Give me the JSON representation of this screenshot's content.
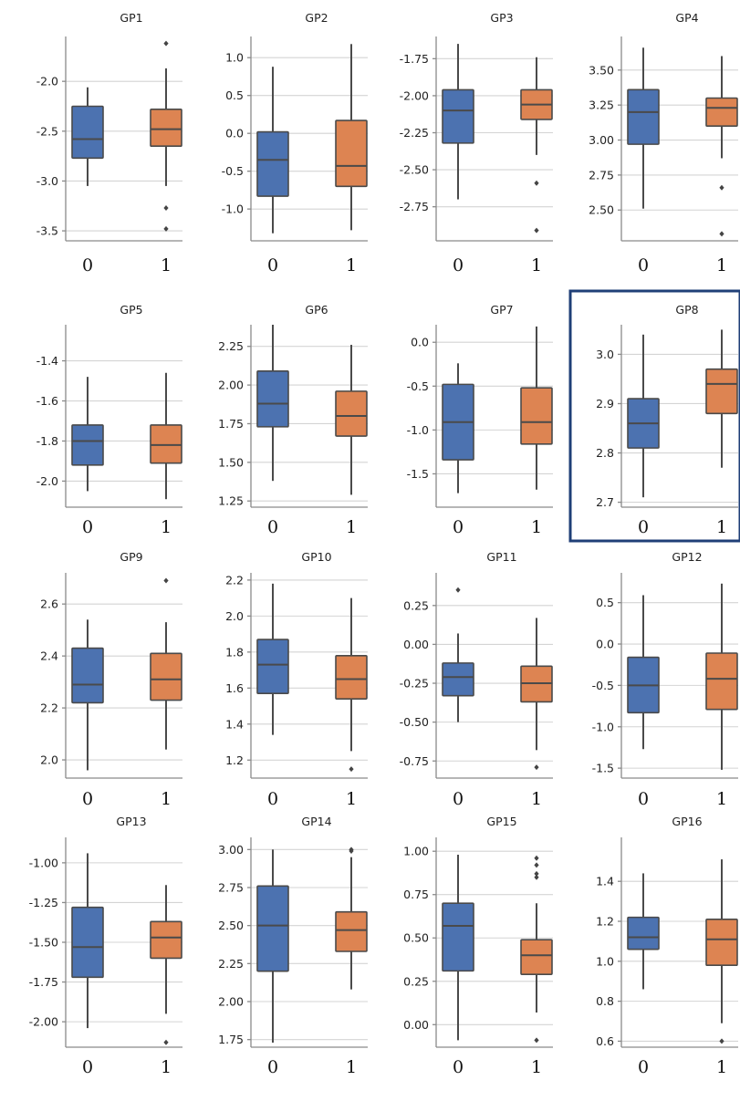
{
  "colors": {
    "group_0": "#4c72b0",
    "group_1": "#dd8452",
    "highlight": "#1f3f77"
  },
  "highlight_panel": "GP8",
  "chart_data": [
    {
      "type": "box",
      "title": "GP1",
      "categories": [
        "0",
        "1"
      ],
      "yticks": [
        "-2.0",
        "-2.5",
        "-3.0",
        "-3.5"
      ],
      "ytick_values": [
        -2.0,
        -2.5,
        -3.0,
        -3.5
      ],
      "ylim": [
        -3.6,
        -1.55
      ],
      "boxes": [
        {
          "min": -3.05,
          "q1": -2.77,
          "median": -2.58,
          "q3": -2.25,
          "max": -2.06,
          "fliers": []
        },
        {
          "min": -3.05,
          "q1": -2.65,
          "median": -2.48,
          "q3": -2.28,
          "max": -1.87,
          "fliers": [
            -1.62,
            -3.27,
            -3.48
          ]
        }
      ]
    },
    {
      "type": "box",
      "title": "GP2",
      "categories": [
        "0",
        "1"
      ],
      "yticks": [
        "1.0",
        "0.5",
        "0.0",
        "-0.5",
        "-1.0"
      ],
      "ytick_values": [
        1.0,
        0.5,
        0.0,
        -0.5,
        -1.0
      ],
      "ylim": [
        -1.42,
        1.28
      ],
      "boxes": [
        {
          "min": -1.32,
          "q1": -0.83,
          "median": -0.35,
          "q3": 0.02,
          "max": 0.88,
          "fliers": []
        },
        {
          "min": -1.28,
          "q1": -0.7,
          "median": -0.43,
          "q3": 0.17,
          "max": 1.18,
          "fliers": []
        }
      ]
    },
    {
      "type": "box",
      "title": "GP3",
      "categories": [
        "0",
        "1"
      ],
      "yticks": [
        "-1.75",
        "-2.00",
        "-2.25",
        "-2.50",
        "-2.75"
      ],
      "ytick_values": [
        -1.75,
        -2.0,
        -2.25,
        -2.5,
        -2.75
      ],
      "ylim": [
        -2.98,
        -1.6
      ],
      "boxes": [
        {
          "min": -2.7,
          "q1": -2.32,
          "median": -2.1,
          "q3": -1.96,
          "max": -1.65,
          "fliers": []
        },
        {
          "min": -2.4,
          "q1": -2.16,
          "median": -2.06,
          "q3": -1.96,
          "max": -1.74,
          "fliers": [
            -2.59,
            -2.91
          ]
        }
      ]
    },
    {
      "type": "box",
      "title": "GP4",
      "categories": [
        "0",
        "1"
      ],
      "yticks": [
        "3.50",
        "3.25",
        "3.00",
        "2.75",
        "2.50"
      ],
      "ytick_values": [
        3.5,
        3.25,
        3.0,
        2.75,
        2.5
      ],
      "ylim": [
        2.28,
        3.74
      ],
      "boxes": [
        {
          "min": 2.51,
          "q1": 2.97,
          "median": 3.2,
          "q3": 3.36,
          "max": 3.66,
          "fliers": []
        },
        {
          "min": 2.87,
          "q1": 3.1,
          "median": 3.23,
          "q3": 3.3,
          "max": 3.6,
          "fliers": [
            2.66,
            2.33
          ]
        }
      ]
    },
    {
      "type": "box",
      "title": "GP5",
      "categories": [
        "0",
        "1"
      ],
      "yticks": [
        "-1.4",
        "-1.6",
        "-1.8",
        "-2.0"
      ],
      "ytick_values": [
        -1.4,
        -1.6,
        -1.8,
        -2.0
      ],
      "ylim": [
        -2.13,
        -1.22
      ],
      "boxes": [
        {
          "min": -2.05,
          "q1": -1.92,
          "median": -1.8,
          "q3": -1.72,
          "max": -1.48,
          "fliers": []
        },
        {
          "min": -2.09,
          "q1": -1.91,
          "median": -1.82,
          "q3": -1.72,
          "max": -1.46,
          "fliers": []
        }
      ]
    },
    {
      "type": "box",
      "title": "GP6",
      "categories": [
        "0",
        "1"
      ],
      "yticks": [
        "2.25",
        "2.00",
        "1.75",
        "1.50",
        "1.25"
      ],
      "ytick_values": [
        2.25,
        2.0,
        1.75,
        1.5,
        1.25
      ],
      "ylim": [
        1.21,
        2.39
      ],
      "boxes": [
        {
          "min": 1.38,
          "q1": 1.73,
          "median": 1.88,
          "q3": 2.09,
          "max": 2.39,
          "fliers": []
        },
        {
          "min": 1.29,
          "q1": 1.67,
          "median": 1.8,
          "q3": 1.96,
          "max": 2.26,
          "fliers": []
        }
      ]
    },
    {
      "type": "box",
      "title": "GP7",
      "categories": [
        "0",
        "1"
      ],
      "yticks": [
        "0.0",
        "-0.5",
        "-1.0",
        "-1.5"
      ],
      "ytick_values": [
        0.0,
        -0.5,
        -1.0,
        -1.5
      ],
      "ylim": [
        -1.88,
        0.2
      ],
      "boxes": [
        {
          "min": -1.72,
          "q1": -1.34,
          "median": -0.91,
          "q3": -0.48,
          "max": -0.24,
          "fliers": []
        },
        {
          "min": -1.68,
          "q1": -1.16,
          "median": -0.91,
          "q3": -0.52,
          "max": 0.18,
          "fliers": []
        }
      ]
    },
    {
      "type": "box",
      "title": "GP8",
      "categories": [
        "0",
        "1"
      ],
      "yticks": [
        "3.0",
        "2.9",
        "2.8",
        "2.7"
      ],
      "ytick_values": [
        3.0,
        2.9,
        2.8,
        2.7
      ],
      "ylim": [
        2.69,
        3.06
      ],
      "boxes": [
        {
          "min": 2.71,
          "q1": 2.81,
          "median": 2.86,
          "q3": 2.91,
          "max": 3.04,
          "fliers": []
        },
        {
          "min": 2.77,
          "q1": 2.88,
          "median": 2.94,
          "q3": 2.97,
          "max": 3.05,
          "fliers": []
        }
      ]
    },
    {
      "type": "box",
      "title": "GP9",
      "categories": [
        "0",
        "1"
      ],
      "yticks": [
        "2.6",
        "2.4",
        "2.2",
        "2.0"
      ],
      "ytick_values": [
        2.6,
        2.4,
        2.2,
        2.0
      ],
      "ylim": [
        1.93,
        2.72
      ],
      "boxes": [
        {
          "min": 1.96,
          "q1": 2.22,
          "median": 2.29,
          "q3": 2.43,
          "max": 2.54,
          "fliers": []
        },
        {
          "min": 2.04,
          "q1": 2.23,
          "median": 2.31,
          "q3": 2.41,
          "max": 2.53,
          "fliers": [
            2.69
          ]
        }
      ]
    },
    {
      "type": "box",
      "title": "GP10",
      "categories": [
        "0",
        "1"
      ],
      "yticks": [
        "2.2",
        "2.0",
        "1.8",
        "1.6",
        "1.4",
        "1.2"
      ],
      "ytick_values": [
        2.2,
        2.0,
        1.8,
        1.6,
        1.4,
        1.2
      ],
      "ylim": [
        1.1,
        2.24
      ],
      "boxes": [
        {
          "min": 1.34,
          "q1": 1.57,
          "median": 1.73,
          "q3": 1.87,
          "max": 2.18,
          "fliers": []
        },
        {
          "min": 1.25,
          "q1": 1.54,
          "median": 1.65,
          "q3": 1.78,
          "max": 2.1,
          "fliers": [
            1.15
          ]
        }
      ]
    },
    {
      "type": "box",
      "title": "GP11",
      "categories": [
        "0",
        "1"
      ],
      "yticks": [
        "0.25",
        "0.00",
        "-0.25",
        "-0.50",
        "-0.75"
      ],
      "ytick_values": [
        0.25,
        0.0,
        -0.25,
        -0.5,
        -0.75
      ],
      "ylim": [
        -0.86,
        0.46
      ],
      "boxes": [
        {
          "min": -0.5,
          "q1": -0.33,
          "median": -0.21,
          "q3": -0.12,
          "max": 0.07,
          "fliers": [
            0.35
          ]
        },
        {
          "min": -0.68,
          "q1": -0.37,
          "median": -0.25,
          "q3": -0.14,
          "max": 0.17,
          "fliers": [
            -0.79
          ]
        }
      ]
    },
    {
      "type": "box",
      "title": "GP12",
      "categories": [
        "0",
        "1"
      ],
      "yticks": [
        "0.5",
        "0.0",
        "-0.5",
        "-1.0",
        "-1.5"
      ],
      "ytick_values": [
        0.5,
        0.0,
        -0.5,
        -1.0,
        -1.5
      ],
      "ylim": [
        -1.62,
        0.86
      ],
      "boxes": [
        {
          "min": -1.27,
          "q1": -0.83,
          "median": -0.5,
          "q3": -0.16,
          "max": 0.59,
          "fliers": []
        },
        {
          "min": -1.52,
          "q1": -0.79,
          "median": -0.42,
          "q3": -0.11,
          "max": 0.73,
          "fliers": []
        }
      ]
    },
    {
      "type": "box",
      "title": "GP13",
      "categories": [
        "0",
        "1"
      ],
      "yticks": [
        "-1.00",
        "-1.25",
        "-1.50",
        "-1.75",
        "-2.00"
      ],
      "ytick_values": [
        -1.0,
        -1.25,
        -1.5,
        -1.75,
        -2.0
      ],
      "ylim": [
        -2.16,
        -0.84
      ],
      "boxes": [
        {
          "min": -2.04,
          "q1": -1.72,
          "median": -1.53,
          "q3": -1.28,
          "max": -0.94,
          "fliers": []
        },
        {
          "min": -1.95,
          "q1": -1.6,
          "median": -1.47,
          "q3": -1.37,
          "max": -1.14,
          "fliers": [
            -2.13
          ]
        }
      ]
    },
    {
      "type": "box",
      "title": "GP14",
      "categories": [
        "0",
        "1"
      ],
      "yticks": [
        "3.00",
        "2.75",
        "2.50",
        "2.25",
        "2.00",
        "1.75"
      ],
      "ytick_values": [
        3.0,
        2.75,
        2.5,
        2.25,
        2.0,
        1.75
      ],
      "ylim": [
        1.7,
        3.08
      ],
      "boxes": [
        {
          "min": 1.73,
          "q1": 2.2,
          "median": 2.5,
          "q3": 2.76,
          "max": 3.0,
          "fliers": []
        },
        {
          "min": 2.08,
          "q1": 2.33,
          "median": 2.47,
          "q3": 2.59,
          "max": 2.95,
          "fliers": [
            3.0,
            2.99
          ]
        }
      ]
    },
    {
      "type": "box",
      "title": "GP15",
      "categories": [
        "0",
        "1"
      ],
      "yticks": [
        "1.00",
        "0.75",
        "0.50",
        "0.25",
        "0.00"
      ],
      "ytick_values": [
        1.0,
        0.75,
        0.5,
        0.25,
        0.0
      ],
      "ylim": [
        -0.13,
        1.08
      ],
      "boxes": [
        {
          "min": -0.09,
          "q1": 0.31,
          "median": 0.57,
          "q3": 0.7,
          "max": 0.98,
          "fliers": []
        },
        {
          "min": 0.07,
          "q1": 0.29,
          "median": 0.4,
          "q3": 0.49,
          "max": 0.7,
          "fliers": [
            0.96,
            0.92,
            0.87,
            0.85,
            -0.09
          ]
        }
      ]
    },
    {
      "type": "box",
      "title": "GP16",
      "categories": [
        "0",
        "1"
      ],
      "yticks": [
        "1.4",
        "1.2",
        "1.0",
        "0.8",
        "0.6"
      ],
      "ytick_values": [
        1.4,
        1.2,
        1.0,
        0.8,
        0.6
      ],
      "ylim": [
        0.57,
        1.62
      ],
      "boxes": [
        {
          "min": 0.86,
          "q1": 1.06,
          "median": 1.12,
          "q3": 1.22,
          "max": 1.44,
          "fliers": []
        },
        {
          "min": 0.69,
          "q1": 0.98,
          "median": 1.11,
          "q3": 1.21,
          "max": 1.51,
          "fliers": [
            0.6
          ]
        }
      ]
    }
  ]
}
